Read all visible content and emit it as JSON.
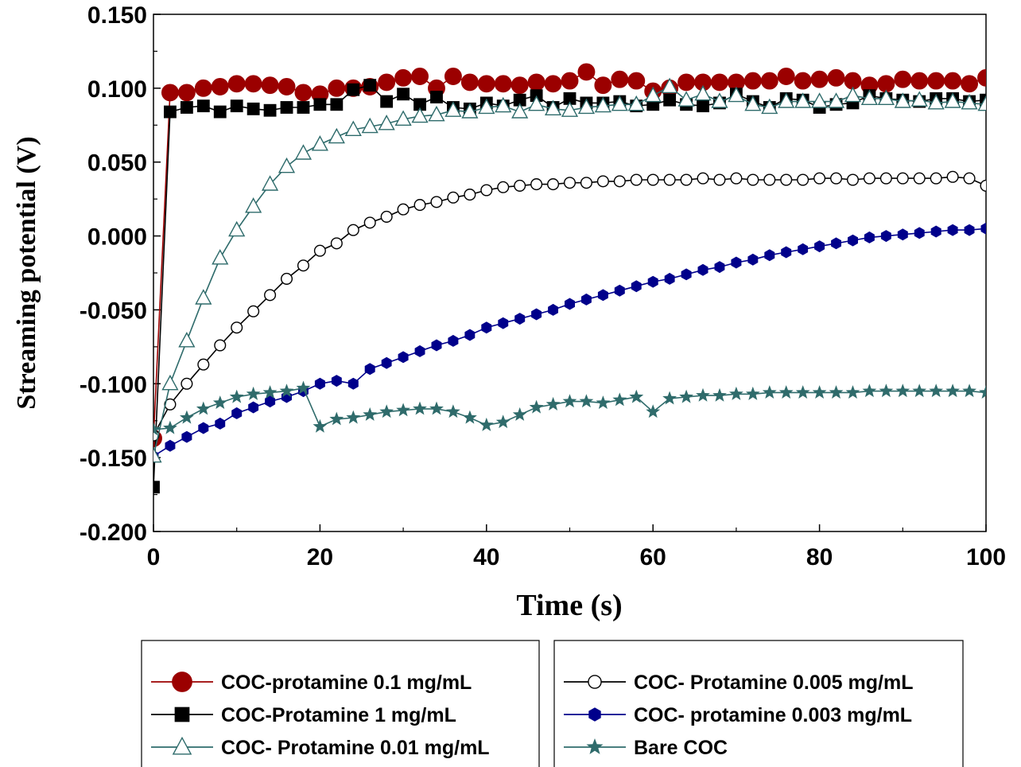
{
  "chart_data": {
    "type": "line",
    "title": "",
    "xlabel": "Time (s)",
    "ylabel": "Streaming potential (V)",
    "xlim": [
      0,
      100
    ],
    "ylim": [
      -0.2,
      0.15
    ],
    "xticks": [
      "0",
      "20",
      "40",
      "60",
      "80",
      "100"
    ],
    "yticks": [
      "0.150",
      "0.100",
      "0.050",
      "0.000",
      "-0.050",
      "-0.100",
      "-0.150",
      "-0.200"
    ],
    "grid": false,
    "legend_placement": "bottom, two boxes",
    "series": [
      {
        "name": "COC-protamine 0.1 mg/mL",
        "color": "#9b0000",
        "marker": "circle-filled",
        "x": [
          0,
          2,
          4,
          6,
          8,
          10,
          12,
          14,
          16,
          18,
          20,
          22,
          24,
          26,
          28,
          30,
          32,
          34,
          36,
          38,
          40,
          42,
          44,
          46,
          48,
          50,
          52,
          54,
          56,
          58,
          60,
          62,
          64,
          66,
          68,
          70,
          72,
          74,
          76,
          78,
          80,
          82,
          84,
          86,
          88,
          90,
          92,
          94,
          96,
          98,
          100
        ],
        "y": [
          -0.137,
          0.097,
          0.097,
          0.1,
          0.101,
          0.103,
          0.103,
          0.102,
          0.101,
          0.097,
          0.096,
          0.1,
          0.1,
          0.101,
          0.104,
          0.107,
          0.108,
          0.1,
          0.108,
          0.104,
          0.103,
          0.103,
          0.102,
          0.104,
          0.103,
          0.105,
          0.111,
          0.102,
          0.106,
          0.105,
          0.098,
          0.1,
          0.104,
          0.104,
          0.104,
          0.104,
          0.105,
          0.105,
          0.108,
          0.105,
          0.106,
          0.107,
          0.105,
          0.102,
          0.103,
          0.106,
          0.105,
          0.105,
          0.105,
          0.103,
          0.107
        ]
      },
      {
        "name": "COC-Protamine 1 mg/mL",
        "color": "#000000",
        "marker": "square-filled",
        "x": [
          0,
          2,
          4,
          6,
          8,
          10,
          12,
          14,
          16,
          18,
          20,
          22,
          24,
          26,
          28,
          30,
          32,
          34,
          36,
          38,
          40,
          42,
          44,
          46,
          48,
          50,
          52,
          54,
          56,
          58,
          60,
          62,
          64,
          66,
          68,
          70,
          72,
          74,
          76,
          78,
          80,
          82,
          84,
          86,
          88,
          90,
          92,
          94,
          96,
          98,
          100
        ],
        "y": [
          -0.17,
          0.084,
          0.087,
          0.088,
          0.084,
          0.088,
          0.086,
          0.085,
          0.087,
          0.087,
          0.089,
          0.089,
          0.099,
          0.102,
          0.091,
          0.096,
          0.089,
          0.094,
          0.087,
          0.086,
          0.09,
          0.088,
          0.092,
          0.095,
          0.087,
          0.093,
          0.09,
          0.09,
          0.091,
          0.088,
          0.089,
          0.092,
          0.089,
          0.088,
          0.09,
          0.096,
          0.091,
          0.087,
          0.093,
          0.092,
          0.087,
          0.089,
          0.09,
          0.095,
          0.093,
          0.092,
          0.091,
          0.093,
          0.093,
          0.091,
          0.092
        ]
      },
      {
        "name": "COC- Protamine 0.01 mg/mL",
        "color": "#2e6b6b",
        "marker": "triangle-open",
        "x": [
          0,
          2,
          4,
          6,
          8,
          10,
          12,
          14,
          16,
          18,
          20,
          22,
          24,
          26,
          28,
          30,
          32,
          34,
          36,
          38,
          40,
          42,
          44,
          46,
          48,
          50,
          52,
          54,
          56,
          58,
          60,
          62,
          64,
          66,
          68,
          70,
          72,
          74,
          76,
          78,
          80,
          82,
          84,
          86,
          88,
          90,
          92,
          94,
          96,
          98,
          100
        ],
        "y": [
          -0.149,
          -0.1,
          -0.071,
          -0.042,
          -0.015,
          0.004,
          0.02,
          0.035,
          0.047,
          0.056,
          0.062,
          0.067,
          0.072,
          0.074,
          0.076,
          0.079,
          0.081,
          0.082,
          0.085,
          0.084,
          0.087,
          0.088,
          0.084,
          0.089,
          0.086,
          0.085,
          0.087,
          0.088,
          0.089,
          0.089,
          0.095,
          0.101,
          0.092,
          0.096,
          0.091,
          0.095,
          0.089,
          0.087,
          0.091,
          0.091,
          0.091,
          0.091,
          0.095,
          0.093,
          0.093,
          0.091,
          0.092,
          0.09,
          0.091,
          0.09,
          0.089
        ]
      },
      {
        "name": "COC- Protamine 0.005 mg/mL",
        "color": "#000000",
        "marker": "circle-open",
        "x": [
          0,
          2,
          4,
          6,
          8,
          10,
          12,
          14,
          16,
          18,
          20,
          22,
          24,
          26,
          28,
          30,
          32,
          34,
          36,
          38,
          40,
          42,
          44,
          46,
          48,
          50,
          52,
          54,
          56,
          58,
          60,
          62,
          64,
          66,
          68,
          70,
          72,
          74,
          76,
          78,
          80,
          82,
          84,
          86,
          88,
          90,
          92,
          94,
          96,
          98,
          100
        ],
        "y": [
          -0.135,
          -0.114,
          -0.1,
          -0.087,
          -0.074,
          -0.062,
          -0.051,
          -0.04,
          -0.029,
          -0.02,
          -0.01,
          -0.005,
          0.004,
          0.009,
          0.013,
          0.018,
          0.021,
          0.023,
          0.026,
          0.028,
          0.031,
          0.033,
          0.034,
          0.035,
          0.035,
          0.036,
          0.036,
          0.037,
          0.037,
          0.038,
          0.038,
          0.038,
          0.038,
          0.039,
          0.038,
          0.039,
          0.038,
          0.038,
          0.038,
          0.038,
          0.039,
          0.039,
          0.038,
          0.039,
          0.039,
          0.039,
          0.039,
          0.039,
          0.04,
          0.039,
          0.034
        ]
      },
      {
        "name": "COC- protamine 0.003 mg/mL",
        "color": "#00008b",
        "marker": "hexagon-filled",
        "x": [
          0,
          2,
          4,
          6,
          8,
          10,
          12,
          14,
          16,
          18,
          20,
          22,
          24,
          26,
          28,
          30,
          32,
          34,
          36,
          38,
          40,
          42,
          44,
          46,
          48,
          50,
          52,
          54,
          56,
          58,
          60,
          62,
          64,
          66,
          68,
          70,
          72,
          74,
          76,
          78,
          80,
          82,
          84,
          86,
          88,
          90,
          92,
          94,
          96,
          98,
          100
        ],
        "y": [
          -0.149,
          -0.142,
          -0.136,
          -0.13,
          -0.127,
          -0.12,
          -0.116,
          -0.112,
          -0.109,
          -0.105,
          -0.1,
          -0.098,
          -0.1,
          -0.09,
          -0.086,
          -0.082,
          -0.078,
          -0.074,
          -0.071,
          -0.067,
          -0.062,
          -0.059,
          -0.056,
          -0.053,
          -0.05,
          -0.046,
          -0.043,
          -0.04,
          -0.037,
          -0.034,
          -0.031,
          -0.029,
          -0.026,
          -0.023,
          -0.021,
          -0.018,
          -0.016,
          -0.013,
          -0.011,
          -0.009,
          -0.007,
          -0.005,
          -0.003,
          -0.001,
          0.0,
          0.001,
          0.002,
          0.003,
          0.004,
          0.004,
          0.005
        ]
      },
      {
        "name": "Bare COC",
        "color": "#2f6b6b",
        "marker": "star-filled",
        "x": [
          0,
          2,
          4,
          6,
          8,
          10,
          12,
          14,
          16,
          18,
          20,
          22,
          24,
          26,
          28,
          30,
          32,
          34,
          36,
          38,
          40,
          42,
          44,
          46,
          48,
          50,
          52,
          54,
          56,
          58,
          60,
          62,
          64,
          66,
          68,
          70,
          72,
          74,
          76,
          78,
          80,
          82,
          84,
          86,
          88,
          90,
          92,
          94,
          96,
          98,
          100
        ],
        "y": [
          -0.131,
          -0.13,
          -0.123,
          -0.117,
          -0.113,
          -0.109,
          -0.107,
          -0.106,
          -0.105,
          -0.103,
          -0.129,
          -0.124,
          -0.123,
          -0.121,
          -0.119,
          -0.118,
          -0.117,
          -0.117,
          -0.119,
          -0.123,
          -0.128,
          -0.126,
          -0.121,
          -0.116,
          -0.114,
          -0.112,
          -0.112,
          -0.113,
          -0.111,
          -0.109,
          -0.119,
          -0.11,
          -0.109,
          -0.108,
          -0.108,
          -0.107,
          -0.107,
          -0.106,
          -0.106,
          -0.106,
          -0.106,
          -0.106,
          -0.106,
          -0.105,
          -0.105,
          -0.105,
          -0.105,
          -0.105,
          -0.105,
          -0.105,
          -0.106
        ]
      }
    ]
  }
}
